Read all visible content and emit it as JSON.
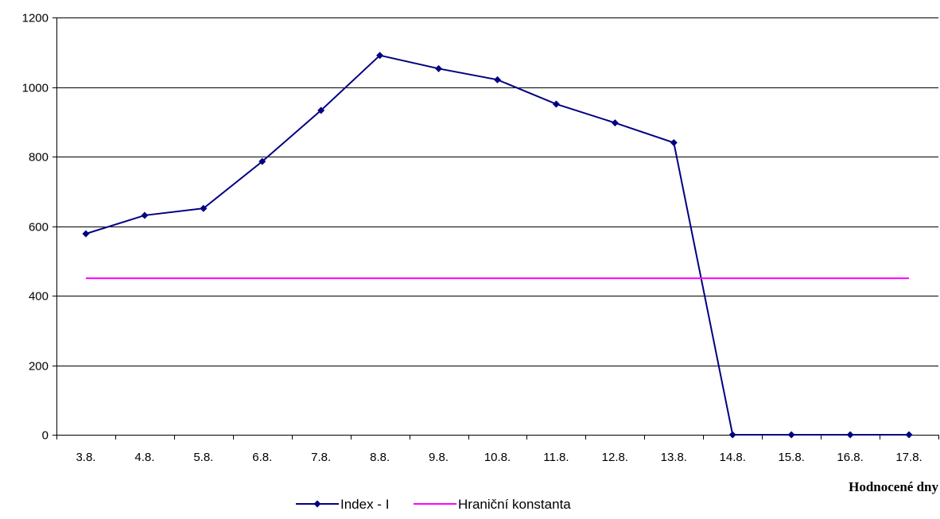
{
  "chart_data": {
    "type": "line",
    "title": "",
    "xlabel": "Hodnocené dny",
    "ylabel": "",
    "categories": [
      "3.8.",
      "4.8.",
      "5.8.",
      "6.8.",
      "7.8.",
      "8.8.",
      "9.8.",
      "10.8.",
      "11.8.",
      "12.8.",
      "13.8.",
      "14.8.",
      "15.8.",
      "16.8.",
      "17.8."
    ],
    "ylim": [
      0,
      1200
    ],
    "yticks": [
      "0",
      "200",
      "400",
      "600",
      "800",
      "1000",
      "1200"
    ],
    "grid": true,
    "legend": "bottom",
    "series": [
      {
        "name": "Index - I",
        "color": "#000080",
        "marker": "diamond",
        "values": [
          578,
          631,
          651,
          786,
          933,
          1091,
          1053,
          1021,
          951,
          897,
          840,
          0,
          0,
          0,
          0
        ]
      },
      {
        "name": "Hraniční konstanta",
        "color": "#FF00FF",
        "marker": "none",
        "values": [
          450,
          450,
          450,
          450,
          450,
          450,
          450,
          450,
          450,
          450,
          450,
          450,
          450,
          450,
          450
        ]
      }
    ]
  }
}
